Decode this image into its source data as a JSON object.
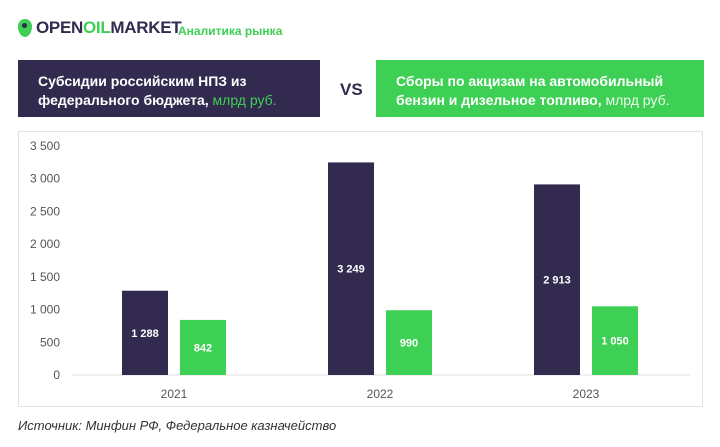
{
  "header": {
    "logo_part1": "OPEN",
    "logo_part2": "OIL",
    "logo_part3": "MARKET",
    "tagline": "Аналитика рынка",
    "left_title": "Субсидии российским НПЗ из федерального бюджета,",
    "left_unit": " млрд руб.",
    "vs": "VS",
    "right_title": "Сборы по акцизам на автомобильный бензин и дизельное топливо,",
    "right_unit": " млрд руб."
  },
  "colors": {
    "purple": "#332a4f",
    "green": "#3ecf55"
  },
  "chart_data": {
    "type": "bar",
    "categories": [
      "2021",
      "2022",
      "2023"
    ],
    "series": [
      {
        "name": "Субсидии российским НПЗ из федерального бюджета",
        "color": "#332a4f",
        "values": [
          1288,
          3249,
          2913
        ],
        "labels": [
          "1 288",
          "3 249",
          "2 913"
        ]
      },
      {
        "name": "Сборы по акцизам на автомобильный бензин и дизельное топливо",
        "color": "#3ecf55",
        "values": [
          842,
          990,
          1050
        ],
        "labels": [
          "842",
          "990",
          "1 050"
        ]
      }
    ],
    "ylim": [
      0,
      3500
    ],
    "yticks": [
      0,
      500,
      1000,
      1500,
      2000,
      2500,
      3000,
      3500
    ],
    "ytick_labels": [
      "0",
      "500",
      "1 000",
      "1 500",
      "2 000",
      "2 500",
      "3 000",
      "3 500"
    ],
    "grid": false
  },
  "source": "Источник: Минфин РФ, Федеральное казначейство"
}
